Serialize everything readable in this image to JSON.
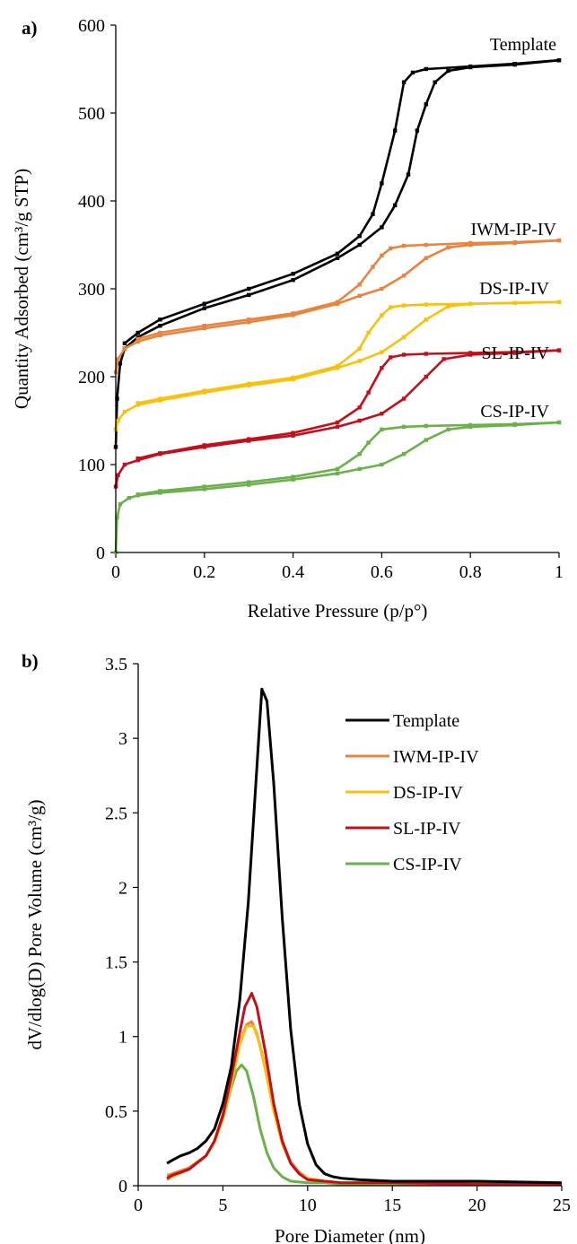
{
  "figure": {
    "colors": {
      "Template": "#000000",
      "IWM-IP-IV": "#E8843E",
      "DS-IP-IV": "#F7C10E",
      "SL-IP-IV": "#C0101C",
      "CS-IP-IV": "#6BB04A"
    }
  },
  "chart_data": [
    {
      "panel_label": "a)",
      "type": "line",
      "xlabel": "Relative Pressure (p/p°)",
      "ylabel": "Quantity Adsorbed (cm³/g STP)",
      "xlim": [
        0,
        1
      ],
      "ylim": [
        0,
        600
      ],
      "xticks": [
        "0",
        "0.2",
        "0.4",
        "0.6",
        "0.8",
        "1"
      ],
      "yticks": [
        "0",
        "100",
        "200",
        "300",
        "400",
        "500",
        "600"
      ],
      "grid": false,
      "legend": "labels next to curves",
      "series": [
        {
          "name": "Template",
          "adsorption": [
            [
              0,
              120
            ],
            [
              0.003,
              175
            ],
            [
              0.01,
              215
            ],
            [
              0.02,
              232
            ],
            [
              0.05,
              245
            ],
            [
              0.1,
              258
            ],
            [
              0.2,
              278
            ],
            [
              0.3,
              293
            ],
            [
              0.4,
              310
            ],
            [
              0.5,
              335
            ],
            [
              0.55,
              350
            ],
            [
              0.6,
              370
            ],
            [
              0.63,
              395
            ],
            [
              0.66,
              430
            ],
            [
              0.68,
              480
            ],
            [
              0.7,
              510
            ],
            [
              0.72,
              535
            ],
            [
              0.75,
              548
            ],
            [
              0.8,
              552
            ],
            [
              0.9,
              555
            ],
            [
              1.0,
              560
            ]
          ],
          "desorption": [
            [
              1.0,
              560
            ],
            [
              0.9,
              556
            ],
            [
              0.8,
              553
            ],
            [
              0.7,
              550
            ],
            [
              0.67,
              546
            ],
            [
              0.65,
              535
            ],
            [
              0.63,
              480
            ],
            [
              0.6,
              420
            ],
            [
              0.58,
              385
            ],
            [
              0.55,
              360
            ],
            [
              0.5,
              340
            ],
            [
              0.4,
              317
            ],
            [
              0.3,
              300
            ],
            [
              0.2,
              283
            ],
            [
              0.1,
              265
            ],
            [
              0.05,
              250
            ],
            [
              0.02,
              238
            ]
          ]
        },
        {
          "name": "IWM-IP-IV",
          "adsorption": [
            [
              0,
              205
            ],
            [
              0.005,
              220
            ],
            [
              0.02,
              232
            ],
            [
              0.05,
              240
            ],
            [
              0.1,
              247
            ],
            [
              0.2,
              255
            ],
            [
              0.3,
              262
            ],
            [
              0.4,
              270
            ],
            [
              0.5,
              283
            ],
            [
              0.55,
              292
            ],
            [
              0.6,
              300
            ],
            [
              0.65,
              315
            ],
            [
              0.7,
              335
            ],
            [
              0.75,
              347
            ],
            [
              0.8,
              350
            ],
            [
              0.9,
              352
            ],
            [
              1.0,
              355
            ]
          ],
          "desorption": [
            [
              1.0,
              355
            ],
            [
              0.9,
              353
            ],
            [
              0.8,
              352
            ],
            [
              0.7,
              350
            ],
            [
              0.65,
              349
            ],
            [
              0.62,
              346
            ],
            [
              0.6,
              338
            ],
            [
              0.58,
              325
            ],
            [
              0.55,
              305
            ],
            [
              0.5,
              285
            ],
            [
              0.4,
              272
            ],
            [
              0.3,
              265
            ],
            [
              0.2,
              258
            ],
            [
              0.1,
              250
            ],
            [
              0.05,
              243
            ]
          ]
        },
        {
          "name": "DS-IP-IV",
          "adsorption": [
            [
              0,
              140
            ],
            [
              0.005,
              150
            ],
            [
              0.02,
              160
            ],
            [
              0.05,
              168
            ],
            [
              0.1,
              173
            ],
            [
              0.2,
              182
            ],
            [
              0.3,
              190
            ],
            [
              0.4,
              197
            ],
            [
              0.5,
              210
            ],
            [
              0.55,
              218
            ],
            [
              0.6,
              228
            ],
            [
              0.65,
              245
            ],
            [
              0.7,
              265
            ],
            [
              0.75,
              280
            ],
            [
              0.8,
              283
            ],
            [
              0.9,
              284
            ],
            [
              1.0,
              285
            ]
          ],
          "desorption": [
            [
              1.0,
              285
            ],
            [
              0.9,
              284
            ],
            [
              0.8,
              283
            ],
            [
              0.7,
              282
            ],
            [
              0.65,
              281
            ],
            [
              0.62,
              279
            ],
            [
              0.6,
              270
            ],
            [
              0.57,
              250
            ],
            [
              0.55,
              232
            ],
            [
              0.5,
              212
            ],
            [
              0.4,
              199
            ],
            [
              0.3,
              192
            ],
            [
              0.2,
              184
            ],
            [
              0.1,
              175
            ],
            [
              0.05,
              170
            ]
          ]
        },
        {
          "name": "SL-IP-IV",
          "adsorption": [
            [
              0,
              75
            ],
            [
              0.005,
              88
            ],
            [
              0.02,
              100
            ],
            [
              0.05,
              105
            ],
            [
              0.1,
              112
            ],
            [
              0.2,
              120
            ],
            [
              0.3,
              127
            ],
            [
              0.4,
              133
            ],
            [
              0.5,
              143
            ],
            [
              0.55,
              150
            ],
            [
              0.6,
              158
            ],
            [
              0.65,
              175
            ],
            [
              0.7,
              200
            ],
            [
              0.74,
              220
            ],
            [
              0.8,
              225
            ],
            [
              0.9,
              227
            ],
            [
              1.0,
              230
            ]
          ],
          "desorption": [
            [
              1.0,
              230
            ],
            [
              0.9,
              228
            ],
            [
              0.8,
              227
            ],
            [
              0.7,
              226
            ],
            [
              0.65,
              225
            ],
            [
              0.62,
              222
            ],
            [
              0.6,
              210
            ],
            [
              0.57,
              182
            ],
            [
              0.55,
              165
            ],
            [
              0.5,
              148
            ],
            [
              0.4,
              136
            ],
            [
              0.3,
              129
            ],
            [
              0.2,
              122
            ],
            [
              0.1,
              113
            ],
            [
              0.05,
              107
            ]
          ]
        },
        {
          "name": "CS-IP-IV",
          "adsorption": [
            [
              0,
              0
            ],
            [
              0.003,
              40
            ],
            [
              0.01,
              55
            ],
            [
              0.03,
              62
            ],
            [
              0.05,
              65
            ],
            [
              0.1,
              68
            ],
            [
              0.2,
              72
            ],
            [
              0.3,
              77
            ],
            [
              0.4,
              83
            ],
            [
              0.5,
              90
            ],
            [
              0.55,
              95
            ],
            [
              0.6,
              100
            ],
            [
              0.65,
              112
            ],
            [
              0.7,
              128
            ],
            [
              0.75,
              140
            ],
            [
              0.8,
              143
            ],
            [
              0.9,
              145
            ],
            [
              1.0,
              148
            ]
          ],
          "desorption": [
            [
              1.0,
              148
            ],
            [
              0.9,
              146
            ],
            [
              0.8,
              145
            ],
            [
              0.7,
              144
            ],
            [
              0.65,
              143
            ],
            [
              0.6,
              140
            ],
            [
              0.57,
              125
            ],
            [
              0.55,
              112
            ],
            [
              0.5,
              95
            ],
            [
              0.4,
              86
            ],
            [
              0.3,
              80
            ],
            [
              0.2,
              75
            ],
            [
              0.1,
              70
            ],
            [
              0.05,
              66
            ]
          ]
        }
      ]
    },
    {
      "panel_label": "b)",
      "type": "line",
      "xlabel": "Pore Diameter (nm)",
      "ylabel": "dV/dlog(D) Pore Volume (cm³/g)",
      "xlim": [
        0,
        25
      ],
      "ylim": [
        0,
        3.5
      ],
      "xticks": [
        "0",
        "5",
        "10",
        "15",
        "20",
        "25"
      ],
      "yticks": [
        "0",
        "0.5",
        "1",
        "1.5",
        "2",
        "2.5",
        "3",
        "3.5"
      ],
      "grid": false,
      "legend": "top-right",
      "series": [
        {
          "name": "Template",
          "x": [
            1.7,
            2,
            2.5,
            3,
            3.5,
            4,
            4.5,
            5,
            5.5,
            6,
            6.5,
            7,
            7.3,
            7.6,
            8,
            8.5,
            9,
            9.5,
            10,
            10.5,
            11,
            11.5,
            12,
            13,
            15,
            20,
            25
          ],
          "y": [
            0.15,
            0.17,
            0.2,
            0.22,
            0.25,
            0.3,
            0.38,
            0.55,
            0.8,
            1.25,
            1.9,
            2.8,
            3.33,
            3.25,
            2.7,
            1.8,
            1.05,
            0.55,
            0.28,
            0.14,
            0.08,
            0.06,
            0.05,
            0.04,
            0.03,
            0.03,
            0.02
          ]
        },
        {
          "name": "IWM-IP-IV",
          "x": [
            1.7,
            2,
            3,
            4,
            4.5,
            5,
            5.5,
            6,
            6.4,
            6.7,
            7,
            7.5,
            8,
            8.5,
            9,
            9.5,
            10,
            11,
            12,
            15,
            20,
            25
          ],
          "y": [
            0.07,
            0.08,
            0.12,
            0.2,
            0.3,
            0.48,
            0.72,
            0.96,
            1.08,
            1.1,
            1.02,
            0.8,
            0.52,
            0.3,
            0.16,
            0.09,
            0.05,
            0.03,
            0.02,
            0.02,
            0.01,
            0.01
          ]
        },
        {
          "name": "DS-IP-IV",
          "x": [
            1.7,
            2,
            3,
            4,
            4.5,
            5,
            5.5,
            6,
            6.4,
            6.8,
            7.1,
            7.5,
            8,
            8.5,
            9,
            9.5,
            10,
            11,
            12,
            15,
            20,
            25
          ],
          "y": [
            0.05,
            0.06,
            0.11,
            0.2,
            0.29,
            0.45,
            0.68,
            0.95,
            1.07,
            1.07,
            0.98,
            0.78,
            0.5,
            0.28,
            0.15,
            0.08,
            0.05,
            0.03,
            0.02,
            0.02,
            0.01,
            0.01
          ]
        },
        {
          "name": "SL-IP-IV",
          "x": [
            1.7,
            2,
            3,
            4,
            4.5,
            5,
            5.5,
            6,
            6.3,
            6.7,
            7,
            7.5,
            8,
            8.5,
            9,
            9.5,
            10,
            11,
            12,
            15,
            20,
            25
          ],
          "y": [
            0.05,
            0.07,
            0.11,
            0.2,
            0.3,
            0.47,
            0.73,
            1.03,
            1.2,
            1.29,
            1.2,
            0.9,
            0.55,
            0.3,
            0.15,
            0.08,
            0.04,
            0.03,
            0.02,
            0.02,
            0.01,
            0.01
          ]
        },
        {
          "name": "CS-IP-IV",
          "x": [
            1.7,
            2,
            3,
            4,
            4.5,
            5,
            5.5,
            5.8,
            6.1,
            6.4,
            6.8,
            7.2,
            7.6,
            8,
            8.5,
            9,
            10,
            11,
            12,
            15,
            20,
            25
          ],
          "y": [
            0.04,
            0.06,
            0.11,
            0.2,
            0.3,
            0.45,
            0.66,
            0.77,
            0.81,
            0.77,
            0.6,
            0.38,
            0.22,
            0.12,
            0.06,
            0.03,
            0.02,
            0.02,
            0.01,
            0.01,
            0.01,
            0.01
          ]
        }
      ]
    }
  ]
}
